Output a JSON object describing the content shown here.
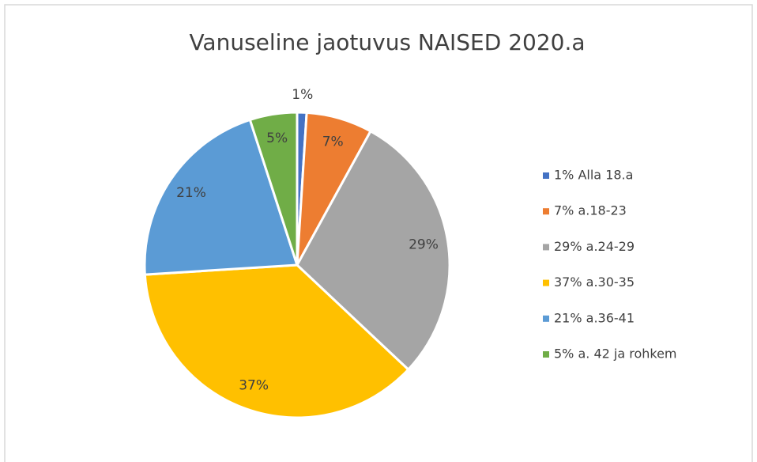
{
  "chart_data": {
    "type": "pie",
    "title": "Vanuseline jaotuvus NAISED 2020.a",
    "categories": [
      "1% Alla 18.a",
      "7% a.18-23",
      "29% a.24-29",
      "37% a.30-35",
      "21% a.36-41",
      "5% a. 42 ja rohkem"
    ],
    "values": [
      1,
      7,
      29,
      37,
      21,
      5
    ],
    "value_labels": [
      "1%",
      "7%",
      "29%",
      "37%",
      "21%",
      "5%"
    ],
    "colors": [
      "#4472c4",
      "#ed7d31",
      "#a5a5a5",
      "#ffc000",
      "#5b9bd5",
      "#70ad47"
    ],
    "legend": "right"
  }
}
